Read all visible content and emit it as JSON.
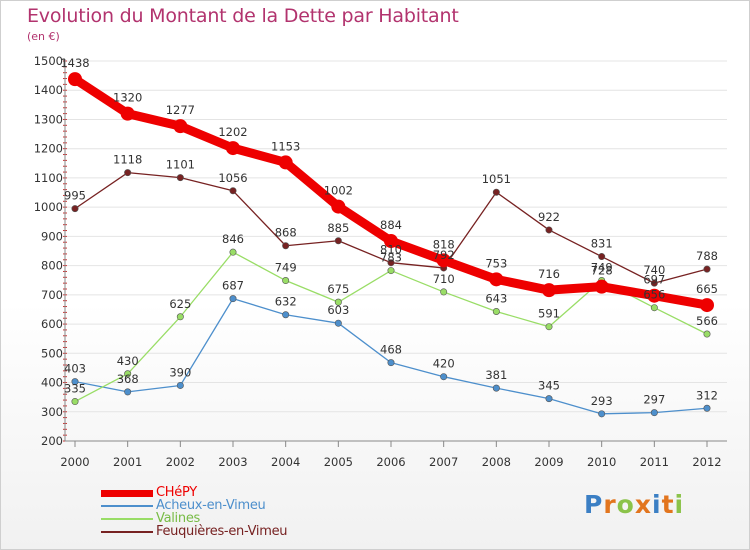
{
  "header": {
    "title": "Evolution du Montant de la Dette par Habitant",
    "subtitle": "(en €)"
  },
  "logo": {
    "text": "Proxiti",
    "colors": [
      "#3b7fc4",
      "#e2751e",
      "#8bc34a",
      "#e2751e",
      "#3b7fc4",
      "#e2751e",
      "#8bc34a"
    ]
  },
  "chart_data": {
    "type": "line",
    "title": "Evolution du Montant de la Dette par Habitant",
    "subtitle": "(en €)",
    "xlabel": "",
    "ylabel": "",
    "x": [
      "2000",
      "2001",
      "2002",
      "2003",
      "2004",
      "2005",
      "2006",
      "2007",
      "2008",
      "2009",
      "2010",
      "2011",
      "2012"
    ],
    "ylim": [
      200,
      1500
    ],
    "yticks": [
      200,
      300,
      400,
      500,
      600,
      700,
      800,
      900,
      1000,
      1100,
      1200,
      1300,
      1400,
      1500
    ],
    "grid": true,
    "legend_position": "bottom-left",
    "series": [
      {
        "name": "CHéPY",
        "color": "#ee0000",
        "values": [
          1438,
          1320,
          1277,
          1202,
          1153,
          1002,
          884,
          818,
          753,
          716,
          728,
          697,
          665
        ],
        "labels": [
          "1438",
          "1320",
          "1277",
          "1202",
          "1153",
          "1002",
          "884",
          "818",
          "753",
          "716",
          "728",
          "697",
          "665"
        ]
      },
      {
        "name": "Acheux-en-Vimeu",
        "color": "#4d8fcc",
        "values": [
          403,
          368,
          390,
          687,
          632,
          603,
          468,
          420,
          381,
          345,
          293,
          297,
          312
        ],
        "labels": [
          "403",
          "368",
          "390",
          "687",
          "632",
          "603",
          "468",
          "420",
          "381",
          "345",
          "293",
          "297",
          "312"
        ]
      },
      {
        "name": "Valines",
        "color": "#99dd66",
        "values": [
          335,
          430,
          625,
          846,
          749,
          675,
          783,
          710,
          643,
          591,
          749,
          656,
          566
        ],
        "labels": [
          "335",
          "430",
          "625",
          "846",
          "749",
          "675",
          "783",
          "710",
          "643",
          "591",
          "749",
          "656",
          "566"
        ]
      },
      {
        "name": "Feuquières-en-Vimeu",
        "color": "#772222",
        "values": [
          995,
          1118,
          1101,
          1056,
          868,
          885,
          810,
          792,
          1051,
          922,
          831,
          740,
          788
        ],
        "labels": [
          "995",
          "1118",
          "1101",
          "1056",
          "868",
          "885",
          "810",
          "792",
          "1051",
          "922",
          "831",
          "740",
          "788"
        ]
      }
    ]
  }
}
